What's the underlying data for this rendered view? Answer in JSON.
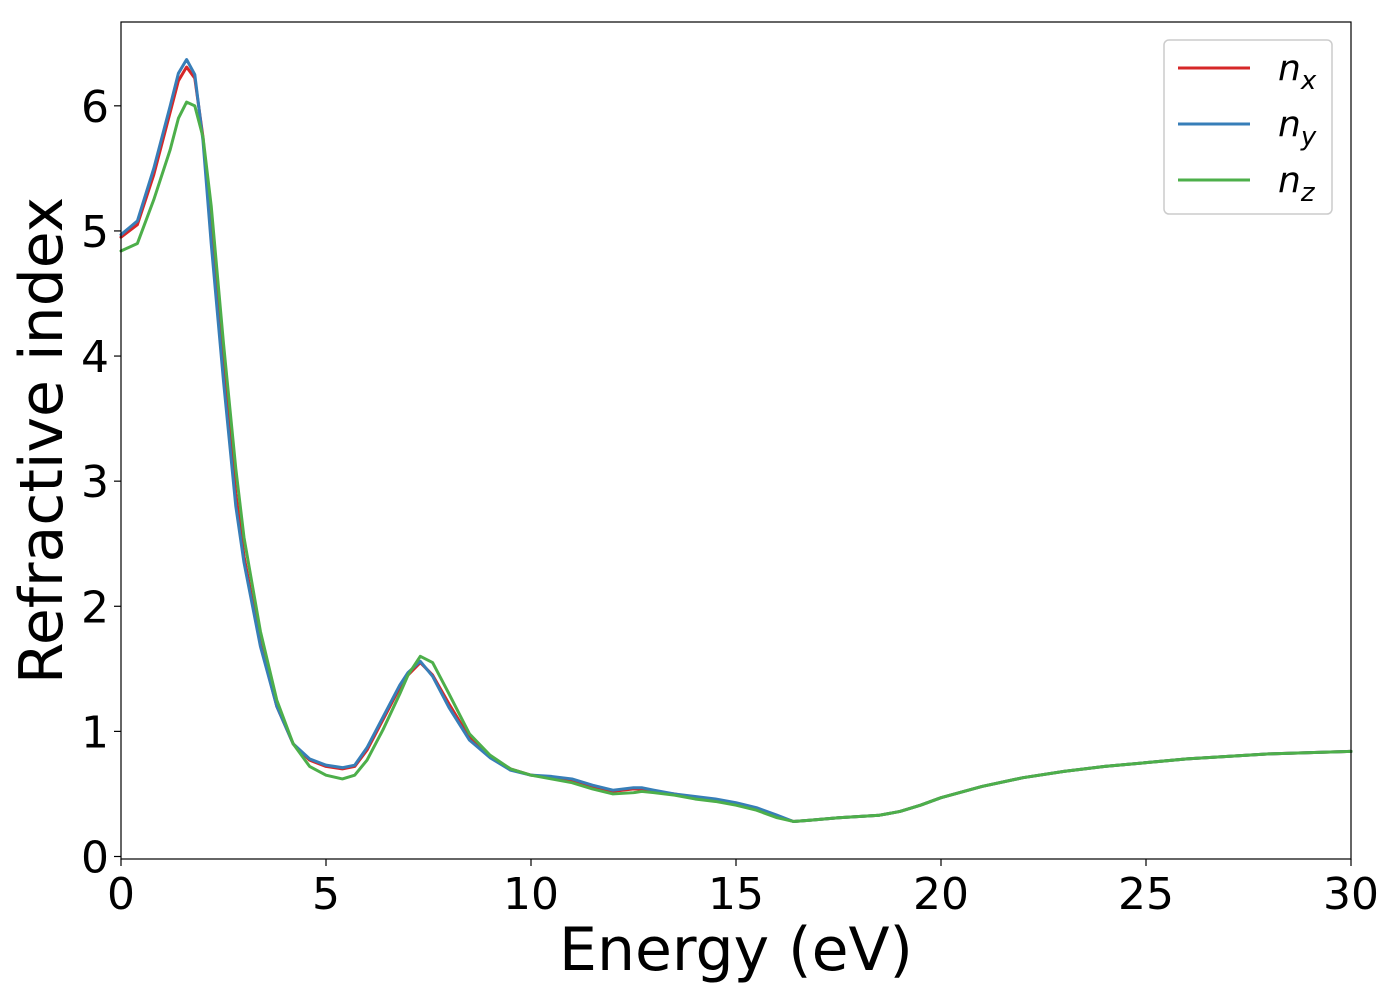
{
  "chart_data": {
    "type": "line",
    "title": "",
    "xlabel": "Energy (eV)",
    "ylabel": "Refractive index",
    "xlim": [
      0,
      30
    ],
    "ylim": [
      -0.02,
      6.67
    ],
    "xticks": [
      0,
      5,
      10,
      15,
      20,
      25,
      30
    ],
    "yticks": [
      0,
      1,
      2,
      3,
      4,
      5,
      6
    ],
    "xtick_labels": [
      "0",
      "5",
      "10",
      "15",
      "20",
      "25",
      "30"
    ],
    "ytick_labels": [
      "0",
      "1",
      "2",
      "3",
      "4",
      "5",
      "6"
    ],
    "grid": false,
    "legend": "top-right",
    "series": [
      {
        "name": "n",
        "subscript": "x",
        "color": "#d62728",
        "x": [
          0,
          0.4,
          0.8,
          1.2,
          1.4,
          1.6,
          1.8,
          2.0,
          2.2,
          2.5,
          2.8,
          3.0,
          3.4,
          3.8,
          4.2,
          4.6,
          5.0,
          5.4,
          5.7,
          6.0,
          6.4,
          6.8,
          7.0,
          7.3,
          7.6,
          8.0,
          8.5,
          9.0,
          9.5,
          10.0,
          10.5,
          11.0,
          11.5,
          12.0,
          12.5,
          12.7,
          13.0,
          13.5,
          14.0,
          14.5,
          15.0,
          15.5,
          16.0,
          16.4,
          16.8,
          17.5,
          18.0,
          18.5,
          19.0,
          19.5,
          20.0,
          21.0,
          22.0,
          23.0,
          24.0,
          25.0,
          26.0,
          27.0,
          28.0,
          29.0,
          30.0
        ],
        "y": [
          4.95,
          5.05,
          5.45,
          5.95,
          6.2,
          6.31,
          6.22,
          5.75,
          5.0,
          3.9,
          2.9,
          2.4,
          1.7,
          1.2,
          0.9,
          0.77,
          0.72,
          0.7,
          0.72,
          0.85,
          1.1,
          1.35,
          1.45,
          1.55,
          1.45,
          1.22,
          0.95,
          0.8,
          0.7,
          0.65,
          0.63,
          0.61,
          0.56,
          0.52,
          0.54,
          0.54,
          0.52,
          0.5,
          0.47,
          0.45,
          0.42,
          0.38,
          0.32,
          0.28,
          0.29,
          0.31,
          0.32,
          0.33,
          0.36,
          0.41,
          0.47,
          0.56,
          0.63,
          0.68,
          0.72,
          0.75,
          0.78,
          0.8,
          0.82,
          0.83,
          0.84
        ]
      },
      {
        "name": "n",
        "subscript": "y",
        "color": "#377eb8",
        "x": [
          0,
          0.4,
          0.8,
          1.2,
          1.4,
          1.6,
          1.8,
          2.0,
          2.2,
          2.5,
          2.8,
          3.0,
          3.4,
          3.8,
          4.2,
          4.6,
          5.0,
          5.4,
          5.7,
          6.0,
          6.4,
          6.8,
          7.0,
          7.3,
          7.6,
          8.0,
          8.5,
          9.0,
          9.5,
          10.0,
          10.5,
          11.0,
          11.5,
          12.0,
          12.5,
          12.7,
          13.0,
          13.5,
          14.0,
          14.5,
          15.0,
          15.5,
          16.0,
          16.4,
          16.8,
          17.5,
          18.0,
          18.5,
          19.0,
          19.5,
          20.0,
          21.0,
          22.0,
          23.0,
          24.0,
          25.0,
          26.0,
          27.0,
          28.0,
          29.0,
          30.0
        ],
        "y": [
          4.97,
          5.08,
          5.5,
          6.0,
          6.26,
          6.37,
          6.25,
          5.72,
          4.9,
          3.8,
          2.8,
          2.35,
          1.68,
          1.2,
          0.9,
          0.78,
          0.73,
          0.71,
          0.73,
          0.87,
          1.12,
          1.37,
          1.47,
          1.56,
          1.44,
          1.19,
          0.93,
          0.79,
          0.69,
          0.65,
          0.64,
          0.62,
          0.57,
          0.53,
          0.55,
          0.55,
          0.53,
          0.5,
          0.48,
          0.46,
          0.43,
          0.39,
          0.33,
          0.28,
          0.29,
          0.31,
          0.32,
          0.33,
          0.36,
          0.41,
          0.47,
          0.56,
          0.63,
          0.68,
          0.72,
          0.75,
          0.78,
          0.8,
          0.82,
          0.83,
          0.84
        ]
      },
      {
        "name": "n",
        "subscript": "z",
        "color": "#4daf4a",
        "x": [
          0,
          0.4,
          0.8,
          1.2,
          1.4,
          1.6,
          1.8,
          2.0,
          2.2,
          2.5,
          2.8,
          3.0,
          3.4,
          3.8,
          4.2,
          4.6,
          5.0,
          5.4,
          5.7,
          6.0,
          6.4,
          6.8,
          7.0,
          7.3,
          7.6,
          8.0,
          8.5,
          9.0,
          9.5,
          10.0,
          10.5,
          11.0,
          11.5,
          12.0,
          12.5,
          12.7,
          13.0,
          13.5,
          14.0,
          14.5,
          15.0,
          15.5,
          16.0,
          16.4,
          16.8,
          17.5,
          18.0,
          18.5,
          19.0,
          19.5,
          20.0,
          21.0,
          22.0,
          23.0,
          24.0,
          25.0,
          26.0,
          27.0,
          28.0,
          29.0,
          30.0
        ],
        "y": [
          4.84,
          4.9,
          5.25,
          5.65,
          5.9,
          6.03,
          6.0,
          5.75,
          5.2,
          4.1,
          3.1,
          2.55,
          1.8,
          1.25,
          0.9,
          0.72,
          0.65,
          0.62,
          0.65,
          0.77,
          1.02,
          1.3,
          1.45,
          1.6,
          1.55,
          1.3,
          0.98,
          0.81,
          0.7,
          0.65,
          0.62,
          0.59,
          0.54,
          0.5,
          0.51,
          0.52,
          0.51,
          0.49,
          0.46,
          0.44,
          0.41,
          0.37,
          0.31,
          0.28,
          0.29,
          0.31,
          0.32,
          0.33,
          0.36,
          0.41,
          0.47,
          0.56,
          0.63,
          0.68,
          0.72,
          0.75,
          0.78,
          0.8,
          0.82,
          0.83,
          0.84
        ]
      }
    ]
  }
}
